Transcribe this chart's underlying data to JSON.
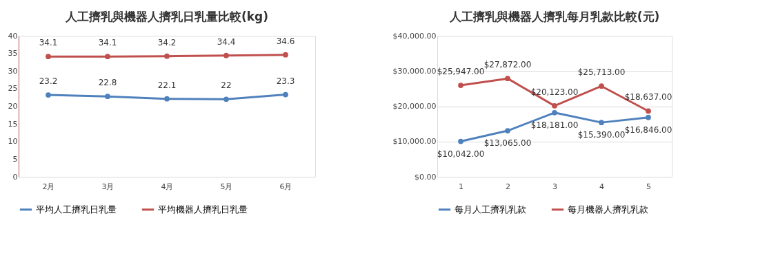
{
  "chart_data": [
    {
      "type": "line",
      "title": "人工擠乳與機器人擠乳日乳量比較(kg)",
      "categories": [
        "2月",
        "3月",
        "4月",
        "5月",
        "6月"
      ],
      "series": [
        {
          "name": "平均人工擠乳日乳量",
          "color": "#4f81bd",
          "values": [
            23.2,
            22.8,
            22.1,
            22,
            23.3
          ]
        },
        {
          "name": "平均機器人擠乳日乳量",
          "color": "#c0504d",
          "values": [
            34.1,
            34.1,
            34.2,
            34.4,
            34.6
          ]
        }
      ],
      "ylim": [
        0,
        40
      ],
      "yticks": [
        0,
        5,
        10,
        15,
        20,
        25,
        30,
        35,
        40
      ],
      "data_labels": true,
      "grid": false,
      "legend": "bottom",
      "marker": "circle"
    },
    {
      "type": "line",
      "title": "人工擠乳與機器人擠乳每月乳款比較(元)",
      "categories": [
        "1",
        "2",
        "3",
        "4",
        "5"
      ],
      "series": [
        {
          "name": "每月人工擠乳乳款",
          "color": "#4f81bd",
          "values": [
            10042,
            13065,
            18181,
            15390,
            16846
          ],
          "value_labels": [
            "$10,042.00",
            "$13,065.00",
            "$18,181.00",
            "$15,390.00",
            "$16,846.00"
          ]
        },
        {
          "name": "每月機器人擠乳乳款",
          "color": "#c0504d",
          "values": [
            25947,
            27872,
            20123,
            25713,
            18637
          ],
          "value_labels": [
            "$25,947.00",
            "$27,872.00",
            "$20,123.00",
            "$25,713.00",
            "$18,637.00"
          ]
        }
      ],
      "ylim": [
        0,
        40000
      ],
      "yticks": [
        {
          "value": 0,
          "label": "$0.00"
        },
        {
          "value": 10000,
          "label": "$10,000.00"
        },
        {
          "value": 20000,
          "label": "$20,000.00"
        },
        {
          "value": 30000,
          "label": "$30,000.00"
        },
        {
          "value": 40000,
          "label": "$40,000.00"
        }
      ],
      "grid": "y",
      "legend": "bottom",
      "marker": "circle"
    }
  ]
}
